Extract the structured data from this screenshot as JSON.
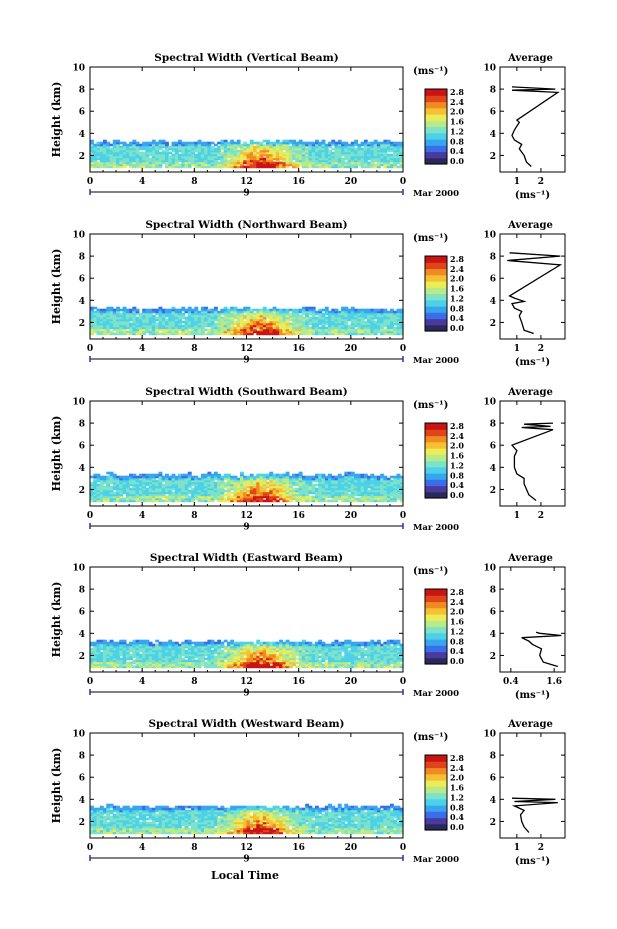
{
  "figure": {
    "date_label": "Mar 2000",
    "day_label": "9",
    "xlabel": "Local Time"
  },
  "colors": {
    "colormap": [
      "#2a2a5a",
      "#4a3aa0",
      "#3a6ee8",
      "#38a6ef",
      "#4cd2e8",
      "#7ee2c8",
      "#b8ea8a",
      "#ecec58",
      "#f6c032",
      "#f08a22",
      "#e04418",
      "#c81414"
    ]
  },
  "chart_data": [
    {
      "type": "heatmap",
      "title": "Spectral Width (Vertical Beam)",
      "xlabel": "",
      "ylabel": "Height (km)",
      "xlim": [
        0,
        24
      ],
      "ylim": [
        0.5,
        10
      ],
      "xticks": [
        "0",
        "4",
        "8",
        "12",
        "16",
        "20",
        "0"
      ],
      "yticks": [
        "2",
        "4",
        "6",
        "8",
        "10"
      ],
      "colorbar": {
        "label": "(ms⁻¹)",
        "ticks": [
          "2.8",
          "2.4",
          "2.0",
          "1.6",
          "1.2",
          "0.8",
          "0.4",
          "0.0"
        ],
        "range": [
          0,
          2.8
        ]
      },
      "echo_top_km": 3.2
    },
    {
      "type": "line",
      "title": "Average",
      "xlabel": "(ms⁻¹)",
      "ylabel": "",
      "xticks": [
        "1",
        "2"
      ],
      "yticks": [
        "2",
        "4",
        "6",
        "8",
        "10"
      ],
      "ylim": [
        0.5,
        10
      ],
      "profile": {
        "x": [
          1.6,
          1.4,
          1.3,
          1.1,
          1.2,
          0.9,
          0.8,
          0.9,
          1.1,
          1.0,
          2.7,
          0.8,
          2.6,
          0.8
        ],
        "y": [
          1.0,
          1.4,
          2.0,
          2.6,
          3.0,
          3.4,
          3.8,
          4.3,
          5.0,
          5.2,
          7.7,
          7.9,
          8.0,
          8.2
        ]
      }
    },
    {
      "type": "heatmap",
      "title": "Spectral Width (Northward Beam)",
      "xlabel": "",
      "ylabel": "Height (km)",
      "xlim": [
        0,
        24
      ],
      "ylim": [
        0.5,
        10
      ],
      "xticks": [
        "0",
        "4",
        "8",
        "12",
        "16",
        "20",
        "0"
      ],
      "yticks": [
        "2",
        "4",
        "6",
        "8",
        "10"
      ],
      "colorbar": {
        "label": "(ms⁻¹)",
        "ticks": [
          "2.8",
          "2.4",
          "2.0",
          "1.6",
          "1.2",
          "0.8",
          "0.4",
          "0.0"
        ],
        "range": [
          0,
          2.8
        ]
      },
      "echo_top_km": 3.2
    },
    {
      "type": "line",
      "title": "Average",
      "xlabel": "(ms⁻¹)",
      "ylabel": "",
      "xticks": [
        "1",
        "2"
      ],
      "yticks": [
        "2",
        "4",
        "6",
        "8",
        "10"
      ],
      "ylim": [
        0.5,
        10
      ],
      "profile": {
        "x": [
          1.7,
          1.3,
          1.2,
          1.1,
          1.2,
          0.9,
          0.8,
          1.3,
          0.9,
          0.7,
          2.8,
          0.6,
          2.8,
          0.7
        ],
        "y": [
          1.0,
          1.3,
          2.0,
          2.6,
          3.0,
          3.3,
          3.7,
          3.9,
          4.2,
          4.4,
          7.2,
          7.6,
          8.0,
          8.3
        ]
      }
    },
    {
      "type": "heatmap",
      "title": "Spectral Width (Southward Beam)",
      "xlabel": "",
      "ylabel": "Height (km)",
      "xlim": [
        0,
        24
      ],
      "ylim": [
        0.5,
        10
      ],
      "xticks": [
        "0",
        "4",
        "8",
        "12",
        "16",
        "20",
        "0"
      ],
      "yticks": [
        "2",
        "4",
        "6",
        "8",
        "10"
      ],
      "colorbar": {
        "label": "(ms⁻¹)",
        "ticks": [
          "2.8",
          "2.4",
          "2.0",
          "1.6",
          "1.2",
          "0.8",
          "0.4",
          "0.0"
        ],
        "range": [
          0,
          2.8
        ]
      },
      "echo_top_km": 3.3
    },
    {
      "type": "line",
      "title": "Average",
      "xlabel": "",
      "ylabel": "",
      "xticks": [
        "1",
        "2"
      ],
      "yticks": [
        "2",
        "4",
        "6",
        "8",
        "10"
      ],
      "ylim": [
        0.5,
        10
      ],
      "profile": {
        "x": [
          1.8,
          1.5,
          1.4,
          1.3,
          1.3,
          1.0,
          0.9,
          0.9,
          1.0,
          0.8,
          2.5,
          1.2,
          2.4,
          1.3,
          2.5
        ],
        "y": [
          1.0,
          1.5,
          2.0,
          2.5,
          3.0,
          3.4,
          4.0,
          5.0,
          5.5,
          6.0,
          7.4,
          7.6,
          7.7,
          7.9,
          8.0
        ]
      }
    },
    {
      "type": "heatmap",
      "title": "Spectral Width (Eastward Beam)",
      "xlabel": "",
      "ylabel": "Height (km)",
      "xlim": [
        0,
        24
      ],
      "ylim": [
        0.5,
        10
      ],
      "xticks": [
        "0",
        "4",
        "8",
        "12",
        "16",
        "20",
        "0"
      ],
      "yticks": [
        "2",
        "4",
        "6",
        "8",
        "10"
      ],
      "colorbar": {
        "label": "(ms⁻¹)",
        "ticks": [
          "2.8",
          "2.4",
          "2.0",
          "1.6",
          "1.2",
          "0.8",
          "0.4",
          "0.0"
        ],
        "range": [
          0,
          2.8
        ]
      },
      "echo_top_km": 3.2
    },
    {
      "type": "line",
      "title": "Average",
      "xlabel": "(ms⁻¹)",
      "ylabel": "",
      "xticks": [
        "0.4",
        "1.6"
      ],
      "yticks": [
        "2",
        "4",
        "6",
        "8",
        "10"
      ],
      "ylim": [
        0.5,
        10
      ],
      "profile": {
        "x": [
          1.7,
          1.3,
          1.2,
          1.25,
          1.0,
          0.9,
          0.7,
          1.8,
          1.2,
          1.1
        ],
        "y": [
          1.0,
          1.4,
          2.0,
          2.6,
          3.0,
          3.3,
          3.6,
          3.8,
          4.0,
          4.1
        ]
      }
    },
    {
      "type": "heatmap",
      "title": "Spectral Width (Westward Beam)",
      "xlabel": "",
      "ylabel": "Height (km)",
      "xlim": [
        0,
        24
      ],
      "ylim": [
        0.5,
        10
      ],
      "xticks": [
        "0",
        "4",
        "8",
        "12",
        "16",
        "20",
        "0"
      ],
      "yticks": [
        "2",
        "4",
        "6",
        "8",
        "10"
      ],
      "colorbar": {
        "label": "(ms⁻¹)",
        "ticks": [
          "2.8",
          "2.4",
          "2.0",
          "1.6",
          "1.2",
          "0.8",
          "0.4",
          "0.0"
        ],
        "range": [
          0,
          2.8
        ]
      },
      "echo_top_km": 3.3
    },
    {
      "type": "line",
      "title": "Average",
      "xlabel": "(ms⁻¹)",
      "ylabel": "",
      "xticks": [
        "1",
        "2"
      ],
      "yticks": [
        "2",
        "4",
        "6",
        "8",
        "10"
      ],
      "ylim": [
        0.5,
        10
      ],
      "profile": {
        "x": [
          1.5,
          1.3,
          1.2,
          1.15,
          1.3,
          0.9,
          2.7,
          0.9,
          2.6,
          0.8
        ],
        "y": [
          1.0,
          1.5,
          2.0,
          2.6,
          3.0,
          3.4,
          3.7,
          3.8,
          4.0,
          4.1
        ]
      }
    }
  ]
}
